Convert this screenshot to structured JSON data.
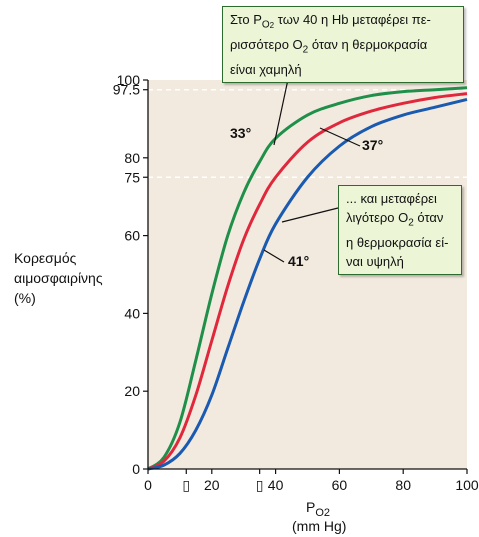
{
  "chart_data": {
    "type": "line",
    "ylabel_lines": [
      "Κορεσμός",
      "αιμοσφαιρίνης",
      "(%)"
    ],
    "xlabel_main": "P",
    "xlabel_sub": "O2",
    "xlabel_unit": "(mm Hg)",
    "xlim": [
      0,
      100
    ],
    "ylim": [
      0,
      100
    ],
    "x_ticks": [
      "0",
      "▯",
      "20",
      "▯",
      "40",
      "60",
      "80",
      "100"
    ],
    "x_tick_values": [
      0,
      12,
      20,
      35,
      40,
      60,
      80,
      100
    ],
    "y_ticks": [
      "0",
      "20",
      "40",
      "60",
      "75",
      "80",
      "97.5",
      "100"
    ],
    "y_tick_values": [
      0,
      20,
      40,
      60,
      75,
      80,
      97.5,
      100
    ],
    "reference_lines_y": [
      97.5,
      75
    ],
    "series": [
      {
        "name": "33°",
        "color": "#1f8f4a",
        "x": [
          0,
          5,
          10,
          15,
          20,
          25,
          30,
          35,
          40,
          50,
          60,
          70,
          80,
          90,
          100
        ],
        "y": [
          0,
          3,
          12,
          28,
          45,
          60,
          71,
          79,
          85,
          91,
          94,
          96,
          97,
          97.5,
          98
        ]
      },
      {
        "name": "37°",
        "color": "#e0283c",
        "x": [
          0,
          5,
          10,
          15,
          20,
          25,
          30,
          35,
          40,
          50,
          60,
          70,
          80,
          90,
          100
        ],
        "y": [
          0,
          2,
          8,
          19,
          33,
          47,
          59,
          68,
          75,
          84,
          89,
          92,
          94,
          95.5,
          96.5
        ]
      },
      {
        "name": "41°",
        "color": "#1a5ab0",
        "x": [
          0,
          5,
          10,
          15,
          20,
          25,
          30,
          35,
          40,
          50,
          60,
          70,
          80,
          90,
          100
        ],
        "y": [
          0,
          1,
          4,
          10,
          19,
          31,
          43,
          54,
          63,
          75,
          83,
          88,
          91,
          93,
          95
        ]
      }
    ],
    "annotations": {
      "top_lines": [
        "Στο P",
        "O",
        "2",
        " των 40 η Hb μεταφέρει πε-",
        "ρισσότερο O",
        "2",
        " όταν η θερμοκρασία",
        "είναι χαμηλή"
      ],
      "middle_lines": [
        "... και μεταφέρει",
        "λιγότερο O",
        "2",
        " όταν",
        "η θερμοκρασία εί-",
        "ναι υψηλή"
      ]
    }
  }
}
